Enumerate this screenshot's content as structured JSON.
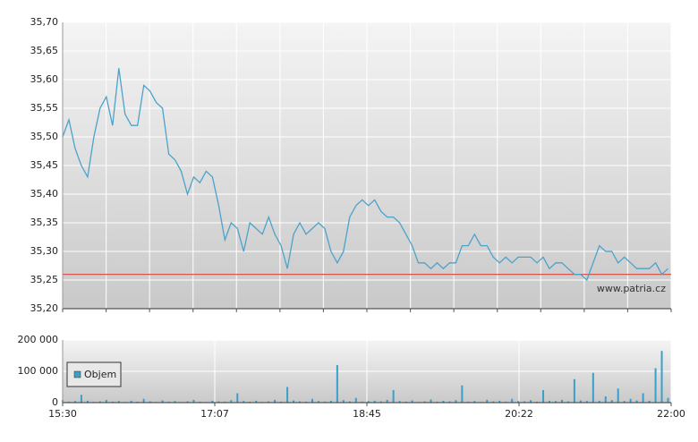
{
  "chart_data": [
    {
      "type": "line",
      "xlim": [
        930,
        1320
      ],
      "xgrid": [
        930,
        957.9,
        985.7,
        1013.6,
        1041.4,
        1069.3,
        1097.1,
        1125,
        1152.9,
        1180.7,
        1208.6,
        1236.4,
        1264.3,
        1292.1,
        1320
      ],
      "ylim": [
        35.2,
        35.7
      ],
      "yticks": [
        {
          "value": 35.2,
          "label": "35,20"
        },
        {
          "value": 35.25,
          "label": "35,25"
        },
        {
          "value": 35.3,
          "label": "35,30"
        },
        {
          "value": 35.35,
          "label": "35,35"
        },
        {
          "value": 35.4,
          "label": "35,40"
        },
        {
          "value": 35.45,
          "label": "35,45"
        },
        {
          "value": 35.5,
          "label": "35,50"
        },
        {
          "value": 35.55,
          "label": "35,55"
        },
        {
          "value": 35.6,
          "label": "35,60"
        },
        {
          "value": 35.65,
          "label": "35,65"
        },
        {
          "value": 35.7,
          "label": "35,70"
        }
      ],
      "grid": true,
      "color": "#4ba3cc",
      "reference_line": {
        "value": 35.26,
        "color": "#d9534f"
      },
      "annotation": "www.patria.cz",
      "x": [
        930,
        934,
        938,
        942,
        946,
        950,
        954,
        958,
        962,
        966,
        970,
        974,
        978,
        982,
        986,
        990,
        994,
        998,
        1002,
        1006,
        1010,
        1014,
        1018,
        1022,
        1026,
        1030,
        1034,
        1038,
        1042,
        1046,
        1050,
        1054,
        1058,
        1062,
        1066,
        1070,
        1074,
        1078,
        1082,
        1086,
        1090,
        1094,
        1098,
        1102,
        1106,
        1110,
        1114,
        1118,
        1122,
        1126,
        1130,
        1134,
        1138,
        1142,
        1146,
        1150,
        1154,
        1158,
        1162,
        1166,
        1170,
        1174,
        1178,
        1182,
        1186,
        1190,
        1194,
        1198,
        1202,
        1206,
        1210,
        1214,
        1218,
        1222,
        1226,
        1230,
        1234,
        1238,
        1242,
        1246,
        1250,
        1254,
        1258,
        1262,
        1266,
        1270,
        1274,
        1278,
        1282,
        1286,
        1290,
        1294,
        1298,
        1302,
        1306,
        1310,
        1314,
        1318
      ],
      "values": [
        35.5,
        35.53,
        35.48,
        35.45,
        35.43,
        35.5,
        35.55,
        35.57,
        35.52,
        35.62,
        35.54,
        35.52,
        35.52,
        35.59,
        35.58,
        35.56,
        35.55,
        35.47,
        35.46,
        35.44,
        35.4,
        35.43,
        35.42,
        35.44,
        35.43,
        35.38,
        35.32,
        35.35,
        35.34,
        35.3,
        35.35,
        35.34,
        35.33,
        35.36,
        35.33,
        35.31,
        35.27,
        35.33,
        35.35,
        35.33,
        35.34,
        35.35,
        35.34,
        35.3,
        35.28,
        35.3,
        35.36,
        35.38,
        35.39,
        35.38,
        35.39,
        35.37,
        35.36,
        35.36,
        35.35,
        35.33,
        35.31,
        35.28,
        35.28,
        35.27,
        35.28,
        35.27,
        35.28,
        35.28,
        35.31,
        35.31,
        35.33,
        35.31,
        35.31,
        35.29,
        35.28,
        35.29,
        35.28,
        35.29,
        35.29,
        35.29,
        35.28,
        35.29,
        35.27,
        35.28,
        35.28,
        35.27,
        35.26,
        35.26,
        35.25,
        35.28,
        35.31,
        35.3,
        35.3,
        35.28,
        35.29,
        35.28,
        35.27,
        35.27,
        35.27,
        35.28,
        35.26,
        35.27
      ]
    },
    {
      "type": "bar",
      "xlim": [
        930,
        1320
      ],
      "xticks": [
        {
          "value": 930,
          "label": "15:30"
        },
        {
          "value": 1027.5,
          "label": "17:07"
        },
        {
          "value": 1125,
          "label": "18:45"
        },
        {
          "value": 1222.5,
          "label": "20:22"
        },
        {
          "value": 1320,
          "label": "22:00"
        }
      ],
      "ylim": [
        0,
        200000
      ],
      "yticks": [
        0,
        {
          "value": 100000,
          "label": "100 000"
        },
        {
          "value": 200000,
          "label": "200 000"
        }
      ],
      "grid": true,
      "legend": "upper left",
      "x": [
        930,
        934,
        938,
        942,
        946,
        950,
        954,
        958,
        962,
        966,
        970,
        974,
        978,
        982,
        986,
        990,
        994,
        998,
        1002,
        1006,
        1010,
        1014,
        1018,
        1022,
        1026,
        1030,
        1034,
        1038,
        1042,
        1046,
        1050,
        1054,
        1058,
        1062,
        1066,
        1070,
        1074,
        1078,
        1082,
        1086,
        1090,
        1094,
        1098,
        1102,
        1106,
        1110,
        1114,
        1118,
        1122,
        1126,
        1130,
        1134,
        1138,
        1142,
        1146,
        1150,
        1154,
        1158,
        1162,
        1166,
        1170,
        1174,
        1178,
        1182,
        1186,
        1190,
        1194,
        1198,
        1202,
        1206,
        1210,
        1214,
        1218,
        1222,
        1226,
        1230,
        1234,
        1238,
        1242,
        1246,
        1250,
        1254,
        1258,
        1262,
        1266,
        1270,
        1274,
        1278,
        1282,
        1286,
        1290,
        1294,
        1298,
        1302,
        1306,
        1310,
        1314,
        1318
      ],
      "series": [
        {
          "name": "Objem",
          "color": "#3a9fc9",
          "values": [
            8000,
            3000,
            5000,
            25000,
            6000,
            2000,
            4000,
            9000,
            3000,
            5000,
            2000,
            6000,
            3000,
            12000,
            4000,
            2000,
            7000,
            3000,
            5000,
            2000,
            4000,
            9000,
            3000,
            2000,
            6000,
            4000,
            3000,
            8000,
            30000,
            5000,
            3000,
            6000,
            2000,
            4000,
            9000,
            3000,
            50000,
            7000,
            4000,
            3000,
            12000,
            5000,
            3000,
            6000,
            120000,
            8000,
            4000,
            15000,
            3000,
            5000,
            6000,
            4000,
            9000,
            40000,
            5000,
            3000,
            7000,
            2000,
            4000,
            10000,
            3000,
            6000,
            4000,
            8000,
            55000,
            3000,
            5000,
            2000,
            9000,
            4000,
            6000,
            3000,
            12000,
            5000,
            4000,
            8000,
            3000,
            40000,
            6000,
            5000,
            9000,
            4000,
            75000,
            7000,
            5000,
            95000,
            6000,
            20000,
            8000,
            45000,
            5000,
            12000,
            7000,
            30000,
            6000,
            110000,
            165000,
            15000
          ]
        }
      ]
    }
  ]
}
